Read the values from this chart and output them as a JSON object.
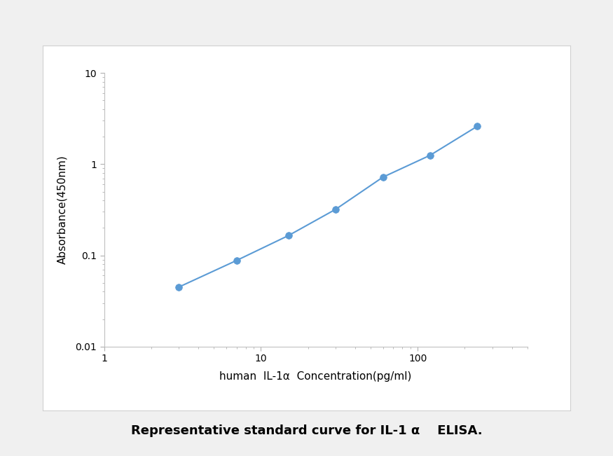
{
  "x_data": [
    3,
    7,
    15,
    30,
    60,
    120,
    240
  ],
  "y_data": [
    0.045,
    0.088,
    0.165,
    0.32,
    0.72,
    1.25,
    2.6
  ],
  "line_color": "#5B9BD5",
  "marker_color": "#5B9BD5",
  "marker_size": 7,
  "line_width": 1.5,
  "xlabel": "human  IL-1α  Concentration(pg/ml)",
  "ylabel": "Absorbance(450nm)",
  "xlim": [
    1,
    500
  ],
  "ylim": [
    0.01,
    10
  ],
  "caption": "Representative standard curve for IL-1 α    ELISA.",
  "caption_fontsize": 13,
  "axis_label_fontsize": 11,
  "tick_fontsize": 10,
  "figure_bg": "#f0f0f0",
  "plot_bg": "#ffffff",
  "box_bg": "#ffffff",
  "spine_color": "#c0c0c0",
  "tick_color": "#b0b0b0"
}
